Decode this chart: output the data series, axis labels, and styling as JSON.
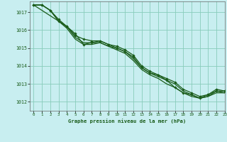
{
  "title": "Graphe pression niveau de la mer (hPa)",
  "bg_color": "#c8eef0",
  "grid_color": "#88ccbb",
  "line_color": "#1a5c1a",
  "xlim": [
    -0.5,
    23
  ],
  "ylim": [
    1011.5,
    1017.6
  ],
  "yticks": [
    1012,
    1013,
    1014,
    1015,
    1016,
    1017
  ],
  "xticks": [
    0,
    1,
    2,
    3,
    4,
    5,
    6,
    7,
    8,
    9,
    10,
    11,
    12,
    13,
    14,
    15,
    16,
    17,
    18,
    19,
    20,
    21,
    22,
    23
  ],
  "series": [
    {
      "y": [
        1017.4,
        1017.4,
        1017.1,
        1016.5,
        1016.2,
        1015.8,
        1015.2,
        1015.3,
        1015.4,
        1015.2,
        1015.0,
        1014.8,
        1014.5,
        1013.9,
        1013.6,
        1013.5,
        1013.2,
        1012.8,
        1012.5,
        1012.4,
        1012.2,
        1012.4,
        1012.6,
        1012.6
      ],
      "marker": true,
      "lw": 0.9
    },
    {
      "y": [
        1017.4,
        1017.4,
        1017.1,
        1016.6,
        1016.2,
        1015.7,
        1015.5,
        1015.4,
        1015.4,
        1015.2,
        1015.1,
        1014.9,
        1014.6,
        1014.0,
        1013.7,
        1013.5,
        1013.3,
        1013.1,
        1012.7,
        1012.5,
        1012.3,
        1012.4,
        1012.7,
        1012.6
      ],
      "marker": true,
      "lw": 0.9
    },
    {
      "y": [
        1017.4,
        1017.4,
        1017.1,
        1016.5,
        1016.2,
        1015.6,
        1015.3,
        1015.3,
        1015.3,
        1015.1,
        1015.0,
        1014.8,
        1014.4,
        1013.9,
        1013.6,
        1013.4,
        1013.2,
        1013.0,
        1012.6,
        1012.4,
        1012.2,
        1012.3,
        1012.6,
        1012.5
      ],
      "marker": false,
      "lw": 0.9
    },
    {
      "y": [
        1017.4,
        1017.1,
        1016.8,
        1016.5,
        1016.1,
        1015.5,
        1015.2,
        1015.2,
        1015.3,
        1015.1,
        1014.9,
        1014.7,
        1014.3,
        1013.8,
        1013.5,
        1013.3,
        1013.0,
        1012.8,
        1012.5,
        1012.3,
        1012.2,
        1012.3,
        1012.5,
        1012.5
      ],
      "marker": false,
      "lw": 0.9
    }
  ]
}
